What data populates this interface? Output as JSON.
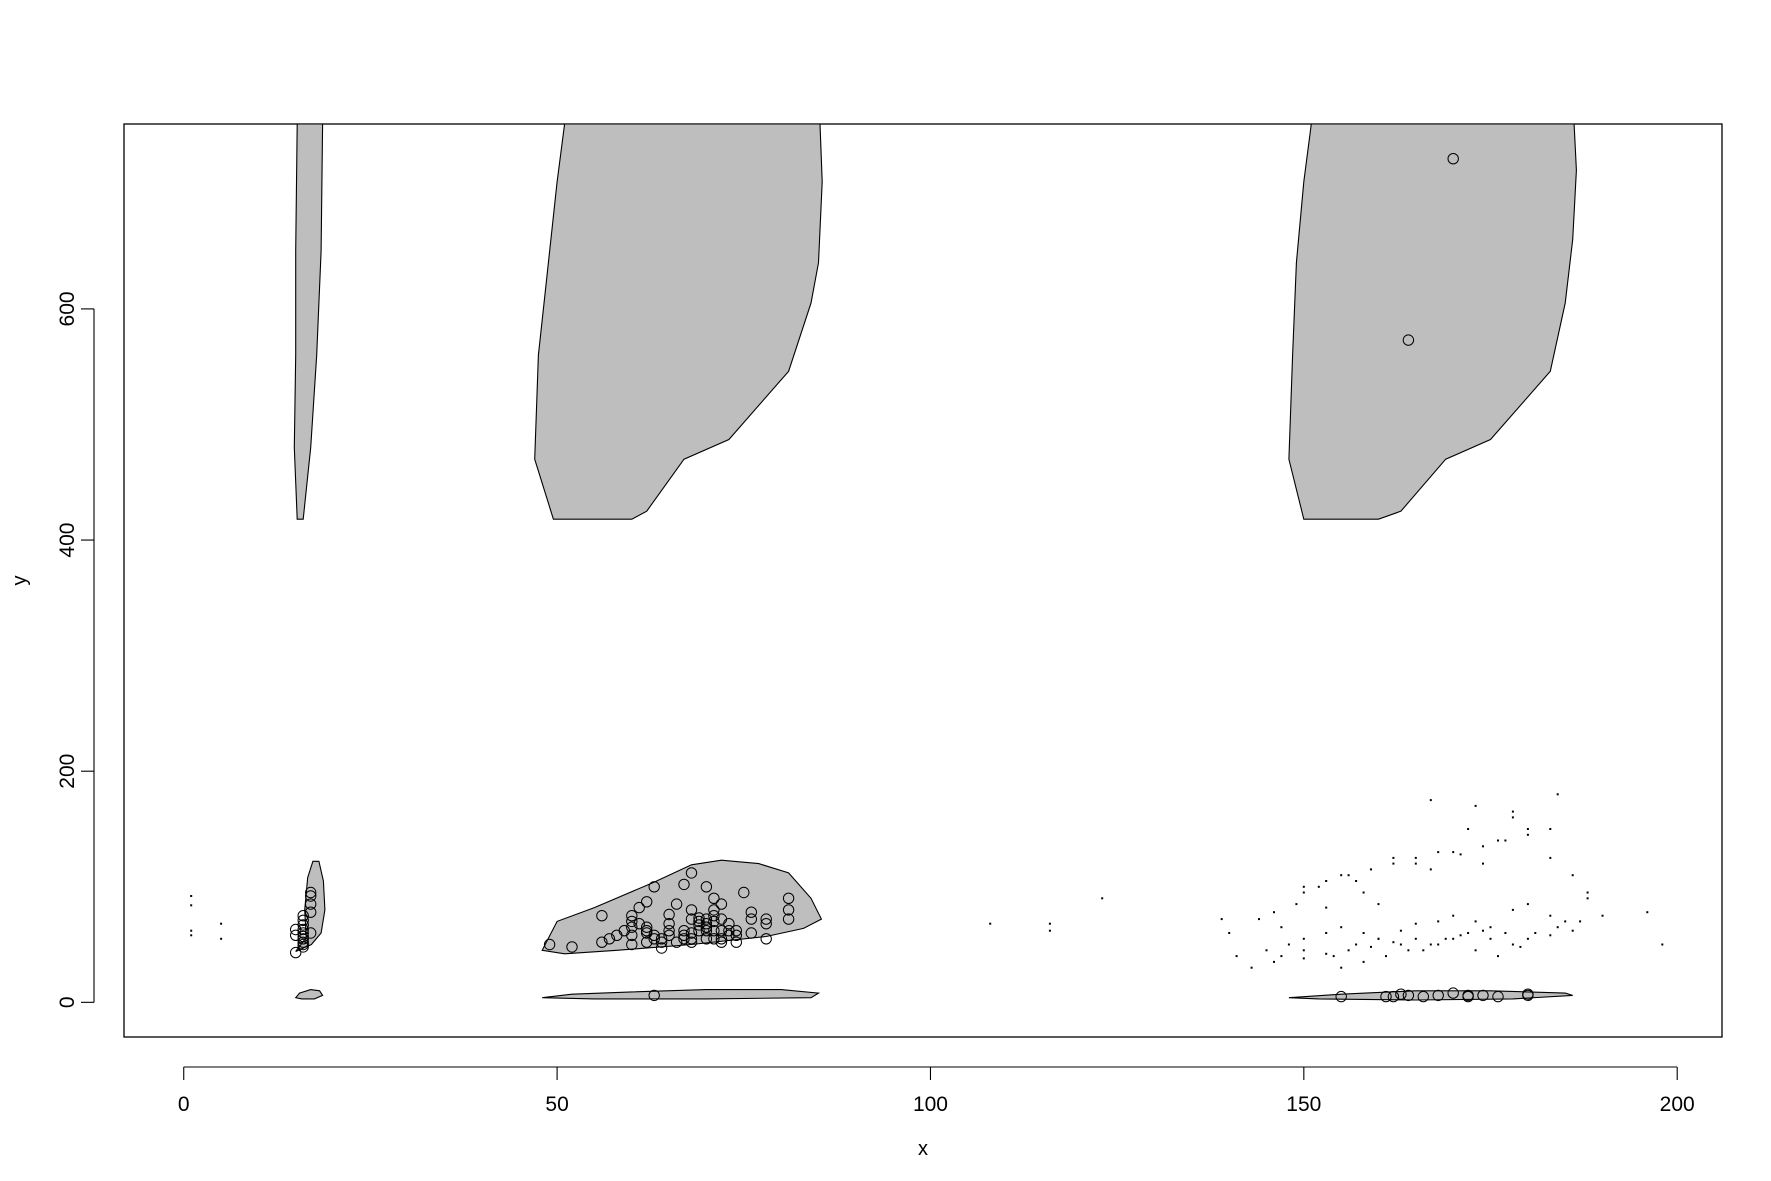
{
  "chart_data": {
    "type": "scatter",
    "title": "",
    "xlabel": "x",
    "ylabel": "y",
    "xlim": [
      -8,
      206
    ],
    "ylim": [
      -30,
      760
    ],
    "x_ticks": [
      0,
      50,
      100,
      150,
      200
    ],
    "y_ticks": [
      0,
      200,
      400,
      600
    ],
    "grid": false,
    "legend": "none",
    "colors": {
      "region_fill": "#bebebe",
      "outline": "#000000",
      "background": "#ffffff"
    },
    "regions": [
      {
        "name": "upper-left-strip",
        "points": [
          [
            15.2,
            760
          ],
          [
            15.0,
            650
          ],
          [
            15.0,
            560
          ],
          [
            14.8,
            480
          ],
          [
            15.2,
            418
          ],
          [
            16.0,
            418
          ],
          [
            17.0,
            480
          ],
          [
            17.8,
            560
          ],
          [
            18.4,
            650
          ],
          [
            18.6,
            760
          ]
        ]
      },
      {
        "name": "upper-middle",
        "points": [
          [
            51,
            760
          ],
          [
            50,
            710
          ],
          [
            48.5,
            620
          ],
          [
            47.5,
            560
          ],
          [
            47.0,
            470
          ],
          [
            49.5,
            418
          ],
          [
            60,
            418
          ],
          [
            62,
            425
          ],
          [
            67,
            470
          ],
          [
            73,
            487
          ],
          [
            81,
            546
          ],
          [
            84,
            605
          ],
          [
            85,
            640
          ],
          [
            85.5,
            710
          ],
          [
            85.2,
            760
          ]
        ]
      },
      {
        "name": "upper-right",
        "points": [
          [
            151,
            760
          ],
          [
            150,
            710
          ],
          [
            149,
            640
          ],
          [
            148.5,
            560
          ],
          [
            148,
            470
          ],
          [
            150,
            418
          ],
          [
            160,
            418
          ],
          [
            163,
            425
          ],
          [
            169,
            470
          ],
          [
            175,
            487
          ],
          [
            183,
            546
          ],
          [
            185,
            605
          ],
          [
            186,
            660
          ],
          [
            186.5,
            720
          ],
          [
            186.2,
            760
          ]
        ]
      },
      {
        "name": "lower-left-blob",
        "points": [
          [
            15.0,
            44
          ],
          [
            16.4,
            56
          ],
          [
            16.2,
            80
          ],
          [
            16.6,
            108
          ],
          [
            17.3,
            122
          ],
          [
            18.1,
            122
          ],
          [
            18.7,
            105
          ],
          [
            18.9,
            80
          ],
          [
            18.4,
            60
          ],
          [
            17.1,
            50
          ]
        ]
      },
      {
        "name": "lower-left-small",
        "points": [
          [
            15.0,
            4
          ],
          [
            15.5,
            8
          ],
          [
            17.0,
            11
          ],
          [
            18.2,
            10
          ],
          [
            18.6,
            6
          ],
          [
            17.5,
            3
          ],
          [
            15.8,
            3
          ]
        ]
      },
      {
        "name": "lower-middle-blob",
        "points": [
          [
            48,
            45
          ],
          [
            50,
            70
          ],
          [
            55,
            82
          ],
          [
            63,
            104
          ],
          [
            68,
            119
          ],
          [
            72,
            123
          ],
          [
            77,
            120
          ],
          [
            81,
            112
          ],
          [
            84,
            90
          ],
          [
            85.4,
            72
          ],
          [
            83,
            64
          ],
          [
            78,
            57
          ],
          [
            68,
            50
          ],
          [
            58,
            45
          ],
          [
            51,
            42
          ]
        ]
      },
      {
        "name": "lower-middle-thin",
        "points": [
          [
            48,
            4
          ],
          [
            52,
            7
          ],
          [
            60,
            9
          ],
          [
            70,
            11
          ],
          [
            80,
            11
          ],
          [
            85,
            8
          ],
          [
            84,
            4
          ],
          [
            70,
            3
          ],
          [
            55,
            3
          ]
        ]
      },
      {
        "name": "lower-right-thin",
        "points": [
          [
            148,
            4
          ],
          [
            155,
            7
          ],
          [
            165,
            10
          ],
          [
            175,
            10
          ],
          [
            185,
            8
          ],
          [
            186,
            6
          ],
          [
            178,
            3
          ],
          [
            165,
            2
          ],
          [
            152,
            3
          ]
        ]
      }
    ],
    "series": [
      {
        "marker": "circle",
        "x": [
          15,
          15,
          16,
          16,
          16,
          16,
          16,
          16,
          16,
          16,
          17,
          17,
          17,
          17,
          16,
          17,
          15,
          16,
          49,
          52,
          56,
          56,
          57,
          58,
          59,
          60,
          60,
          60,
          60,
          60,
          61,
          61,
          62,
          62,
          62,
          62,
          62,
          63,
          63,
          63,
          64,
          64,
          64,
          65,
          65,
          65,
          65,
          66,
          66,
          67,
          67,
          67,
          67,
          68,
          68,
          68,
          68,
          68,
          68,
          69,
          69,
          69,
          69,
          70,
          70,
          70,
          70,
          70,
          70,
          71,
          71,
          71,
          71,
          71,
          71,
          72,
          72,
          72,
          72,
          72,
          73,
          73,
          73,
          74,
          74,
          74,
          75,
          76,
          76,
          76,
          78,
          78,
          78,
          81,
          81,
          81,
          63,
          70,
          170,
          164,
          155,
          161,
          162,
          163,
          164,
          166,
          168,
          170,
          172,
          172,
          174,
          176,
          180,
          180
        ],
        "y": [
          43,
          63,
          52,
          55,
          57,
          60,
          63,
          67,
          71,
          75,
          95,
          78,
          85,
          92,
          48,
          60,
          58,
          50,
          50,
          48,
          52,
          75,
          55,
          58,
          62,
          50,
          58,
          65,
          70,
          75,
          82,
          68,
          52,
          60,
          62,
          65,
          87,
          55,
          58,
          100,
          52,
          47,
          55,
          62,
          58,
          68,
          76,
          85,
          52,
          102,
          55,
          62,
          58,
          72,
          80,
          112,
          52,
          55,
          60,
          62,
          67,
          70,
          73,
          55,
          62,
          65,
          68,
          72,
          100,
          55,
          62,
          70,
          75,
          80,
          90,
          52,
          55,
          62,
          72,
          85,
          58,
          62,
          68,
          52,
          58,
          62,
          95,
          60,
          72,
          78,
          55,
          68,
          72,
          90,
          72,
          80,
          6,
          65,
          730,
          573,
          5,
          5,
          5,
          7,
          6,
          5,
          6,
          8,
          5,
          6,
          6,
          5,
          6,
          7
        ]
      },
      {
        "marker": "dot",
        "x": [
          1,
          1,
          5,
          5,
          1,
          1,
          108,
          116,
          116,
          123,
          139,
          140,
          144,
          146,
          147,
          149,
          150,
          152,
          153,
          155,
          157,
          158,
          160,
          162,
          165,
          167,
          170,
          172,
          174,
          176,
          178,
          180,
          183,
          186,
          188,
          190,
          196,
          198,
          141,
          145,
          148,
          150,
          153,
          155,
          158,
          160,
          163,
          165,
          168,
          170,
          173,
          175,
          178,
          180,
          183,
          185,
          188,
          143,
          147,
          150,
          154,
          157,
          160,
          163,
          166,
          169,
          172,
          175,
          178,
          181,
          184,
          187,
          146,
          150,
          153,
          156,
          159,
          162,
          165,
          168,
          171,
          174,
          177,
          180,
          183,
          186,
          150,
          153,
          156,
          159,
          162,
          165,
          168,
          171,
          174,
          177,
          180,
          183,
          155,
          158,
          161,
          164,
          167,
          170,
          173,
          176,
          179,
          167,
          173,
          178,
          184
        ],
        "y": [
          92,
          84,
          68,
          55,
          62,
          58,
          68,
          68,
          62,
          90,
          72,
          60,
          72,
          78,
          65,
          85,
          95,
          100,
          82,
          110,
          105,
          95,
          85,
          125,
          120,
          115,
          130,
          150,
          120,
          140,
          165,
          150,
          125,
          110,
          95,
          75,
          78,
          50,
          40,
          45,
          50,
          55,
          60,
          65,
          60,
          55,
          62,
          68,
          70,
          75,
          70,
          65,
          80,
          85,
          75,
          70,
          90,
          30,
          40,
          45,
          40,
          50,
          55,
          50,
          45,
          55,
          60,
          55,
          50,
          60,
          65,
          70,
          35,
          38,
          42,
          45,
          48,
          52,
          55,
          50,
          58,
          62,
          60,
          55,
          58,
          62,
          100,
          105,
          110,
          115,
          120,
          125,
          130,
          128,
          135,
          140,
          145,
          150,
          30,
          35,
          40,
          45,
          50,
          55,
          45,
          40,
          48,
          175,
          170,
          160,
          180
        ]
      }
    ]
  }
}
